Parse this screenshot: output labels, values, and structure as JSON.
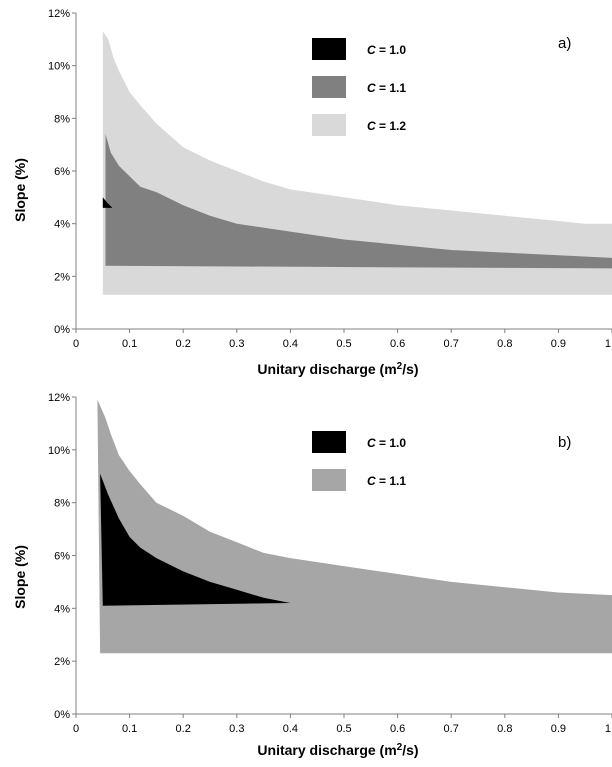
{
  "chart_data": [
    {
      "type": "area",
      "panel_label": "a)",
      "xlabel": "Unitary discharge (m",
      "xlabel_sup": "2",
      "xlabel_end": "/s)",
      "ylabel": "Slope (%)",
      "xlim": [
        0,
        1
      ],
      "ylim": [
        0,
        12
      ],
      "x_ticks": [
        "0",
        "0.1",
        "0.2",
        "0.3",
        "0.4",
        "0.5",
        "0.6",
        "0.7",
        "0.8",
        "0.9",
        "1"
      ],
      "y_ticks": [
        "0%",
        "2%",
        "4%",
        "6%",
        "8%",
        "10%",
        "12%"
      ],
      "grid": false,
      "legend_position": "top-center",
      "series": [
        {
          "name_prefix": "C",
          "name_suffix": " = 1.2",
          "color": "#d9d9d9",
          "upper": [
            [
              0.05,
              11.3
            ],
            [
              0.06,
              11.0
            ],
            [
              0.07,
              10.3
            ],
            [
              0.08,
              9.8
            ],
            [
              0.1,
              9.0
            ],
            [
              0.12,
              8.5
            ],
            [
              0.15,
              7.8
            ],
            [
              0.2,
              6.9
            ],
            [
              0.25,
              6.4
            ],
            [
              0.3,
              6.0
            ],
            [
              0.35,
              5.6
            ],
            [
              0.4,
              5.3
            ],
            [
              0.5,
              5.0
            ],
            [
              0.6,
              4.7
            ],
            [
              0.7,
              4.5
            ],
            [
              0.8,
              4.3
            ],
            [
              0.9,
              4.1
            ],
            [
              0.95,
              4.0
            ],
            [
              1.0,
              4.0
            ]
          ],
          "lower": [
            [
              0.05,
              1.3
            ],
            [
              1.0,
              1.3
            ]
          ]
        },
        {
          "name_prefix": "C",
          "name_suffix": " = 1.1",
          "color": "#808080",
          "upper": [
            [
              0.055,
              7.4
            ],
            [
              0.065,
              6.7
            ],
            [
              0.08,
              6.2
            ],
            [
              0.1,
              5.8
            ],
            [
              0.12,
              5.4
            ],
            [
              0.15,
              5.2
            ],
            [
              0.2,
              4.7
            ],
            [
              0.25,
              4.3
            ],
            [
              0.3,
              4.0
            ],
            [
              0.4,
              3.7
            ],
            [
              0.5,
              3.4
            ],
            [
              0.6,
              3.2
            ],
            [
              0.7,
              3.0
            ],
            [
              0.8,
              2.9
            ],
            [
              0.9,
              2.8
            ],
            [
              1.0,
              2.7
            ]
          ],
          "lower": [
            [
              0.055,
              2.4
            ],
            [
              1.0,
              2.3
            ]
          ]
        },
        {
          "name_prefix": "C",
          "name_suffix": " = 1.0",
          "color": "#000000",
          "polygon": [
            [
              0.05,
              5.0
            ],
            [
              0.058,
              4.8
            ],
            [
              0.068,
              4.6
            ],
            [
              0.05,
              4.6
            ]
          ]
        }
      ]
    },
    {
      "type": "area",
      "panel_label": "b)",
      "xlabel": "Unitary discharge (m",
      "xlabel_sup": "2",
      "xlabel_end": "/s)",
      "ylabel": "Slope (%)",
      "xlim": [
        0,
        1
      ],
      "ylim": [
        0,
        12
      ],
      "x_ticks": [
        "0",
        "0.1",
        "0.2",
        "0.3",
        "0.4",
        "0.5",
        "0.6",
        "0.7",
        "0.8",
        "0.9",
        "1"
      ],
      "y_ticks": [
        "0%",
        "2%",
        "4%",
        "6%",
        "8%",
        "10%",
        "12%"
      ],
      "grid": false,
      "legend_position": "top-center",
      "series": [
        {
          "name_prefix": "C",
          "name_suffix": " = 1.1",
          "color": "#a6a6a6",
          "upper": [
            [
              0.04,
              11.9
            ],
            [
              0.055,
              11.2
            ],
            [
              0.065,
              10.6
            ],
            [
              0.08,
              9.8
            ],
            [
              0.1,
              9.2
            ],
            [
              0.12,
              8.7
            ],
            [
              0.15,
              8.0
            ],
            [
              0.2,
              7.5
            ],
            [
              0.25,
              6.9
            ],
            [
              0.3,
              6.5
            ],
            [
              0.35,
              6.1
            ],
            [
              0.4,
              5.9
            ],
            [
              0.5,
              5.6
            ],
            [
              0.6,
              5.3
            ],
            [
              0.7,
              5.0
            ],
            [
              0.8,
              4.8
            ],
            [
              0.9,
              4.6
            ],
            [
              1.0,
              4.5
            ]
          ],
          "lower": [
            [
              0.045,
              2.3
            ],
            [
              1.0,
              2.3
            ]
          ]
        },
        {
          "name_prefix": "C",
          "name_suffix": " = 1.0",
          "color": "#000000",
          "upper": [
            [
              0.045,
              9.1
            ],
            [
              0.06,
              8.3
            ],
            [
              0.08,
              7.4
            ],
            [
              0.1,
              6.7
            ],
            [
              0.12,
              6.3
            ],
            [
              0.15,
              5.9
            ],
            [
              0.2,
              5.4
            ],
            [
              0.25,
              5.0
            ],
            [
              0.3,
              4.7
            ],
            [
              0.35,
              4.4
            ],
            [
              0.4,
              4.2
            ]
          ],
          "lower": [
            [
              0.05,
              4.1
            ],
            [
              0.4,
              4.2
            ]
          ]
        }
      ]
    }
  ]
}
